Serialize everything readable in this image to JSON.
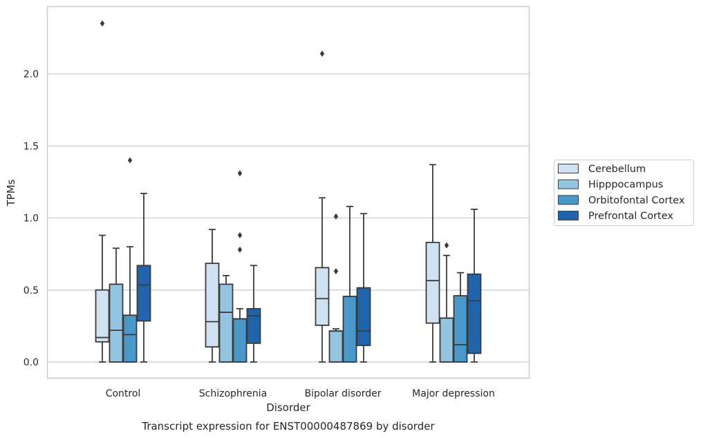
{
  "chart_data": {
    "type": "boxplot",
    "title": "",
    "caption": "Transcript expression for ENST00000487869 by disorder",
    "xlabel": "Disorder",
    "ylabel": "TPMs",
    "ylim": [
      -0.11,
      2.47
    ],
    "yticks": [
      "0.0",
      "0.5",
      "1.0",
      "1.5",
      "2.0"
    ],
    "grid": "horizontal",
    "legend_position": "right",
    "categories": [
      "Control",
      "Schizophrenia",
      "Bipolar disorder",
      "Major depression"
    ],
    "series": [
      {
        "name": "Cerebellum",
        "color": "#d0e1f2",
        "boxes": [
          {
            "whislo": 0.0,
            "q1": 0.14,
            "med": 0.17,
            "q3": 0.5,
            "whishi": 0.88,
            "fliers": [
              2.35
            ]
          },
          {
            "whislo": 0.0,
            "q1": 0.105,
            "med": 0.28,
            "q3": 0.685,
            "whishi": 0.92,
            "fliers": []
          },
          {
            "whislo": 0.0,
            "q1": 0.255,
            "med": 0.44,
            "q3": 0.655,
            "whishi": 1.14,
            "fliers": [
              2.14
            ]
          },
          {
            "whislo": 0.0,
            "q1": 0.27,
            "med": 0.565,
            "q3": 0.83,
            "whishi": 1.37,
            "fliers": []
          }
        ]
      },
      {
        "name": "Hipppocampus",
        "color": "#94c4df",
        "boxes": [
          {
            "whislo": 0.0,
            "q1": 0.0,
            "med": 0.22,
            "q3": 0.54,
            "whishi": 0.79,
            "fliers": []
          },
          {
            "whislo": 0.0,
            "q1": 0.0,
            "med": 0.345,
            "q3": 0.54,
            "whishi": 0.6,
            "fliers": []
          },
          {
            "whislo": 0.0,
            "q1": 0.0,
            "med": 0.215,
            "q3": 0.215,
            "whishi": 0.23,
            "fliers": [
              1.01,
              0.63
            ]
          },
          {
            "whislo": 0.0,
            "q1": 0.0,
            "med": 0.305,
            "q3": 0.305,
            "whishi": 0.74,
            "fliers": [
              0.81
            ]
          }
        ]
      },
      {
        "name": "Orbitofontal Cortex",
        "color": "#4a98c9",
        "boxes": [
          {
            "whislo": 0.0,
            "q1": 0.0,
            "med": 0.19,
            "q3": 0.325,
            "whishi": 0.8,
            "fliers": [
              1.4
            ]
          },
          {
            "whislo": 0.0,
            "q1": 0.0,
            "med": 0.3,
            "q3": 0.3,
            "whishi": 0.37,
            "fliers": [
              1.31,
              0.88,
              0.78
            ]
          },
          {
            "whislo": 0.0,
            "q1": 0.0,
            "med": 0.455,
            "q3": 0.455,
            "whishi": 1.08,
            "fliers": []
          },
          {
            "whislo": 0.0,
            "q1": 0.0,
            "med": 0.12,
            "q3": 0.46,
            "whishi": 0.62,
            "fliers": []
          }
        ]
      },
      {
        "name": "Prefrontal Cortex",
        "color": "#2164ab",
        "boxes": [
          {
            "whislo": 0.0,
            "q1": 0.285,
            "med": 0.535,
            "q3": 0.67,
            "whishi": 1.17,
            "fliers": []
          },
          {
            "whislo": 0.0,
            "q1": 0.13,
            "med": 0.32,
            "q3": 0.37,
            "whishi": 0.67,
            "fliers": []
          },
          {
            "whislo": 0.0,
            "q1": 0.115,
            "med": 0.215,
            "q3": 0.515,
            "whishi": 1.03,
            "fliers": []
          },
          {
            "whislo": 0.0,
            "q1": 0.06,
            "med": 0.425,
            "q3": 0.61,
            "whishi": 1.06,
            "fliers": []
          }
        ]
      }
    ]
  }
}
